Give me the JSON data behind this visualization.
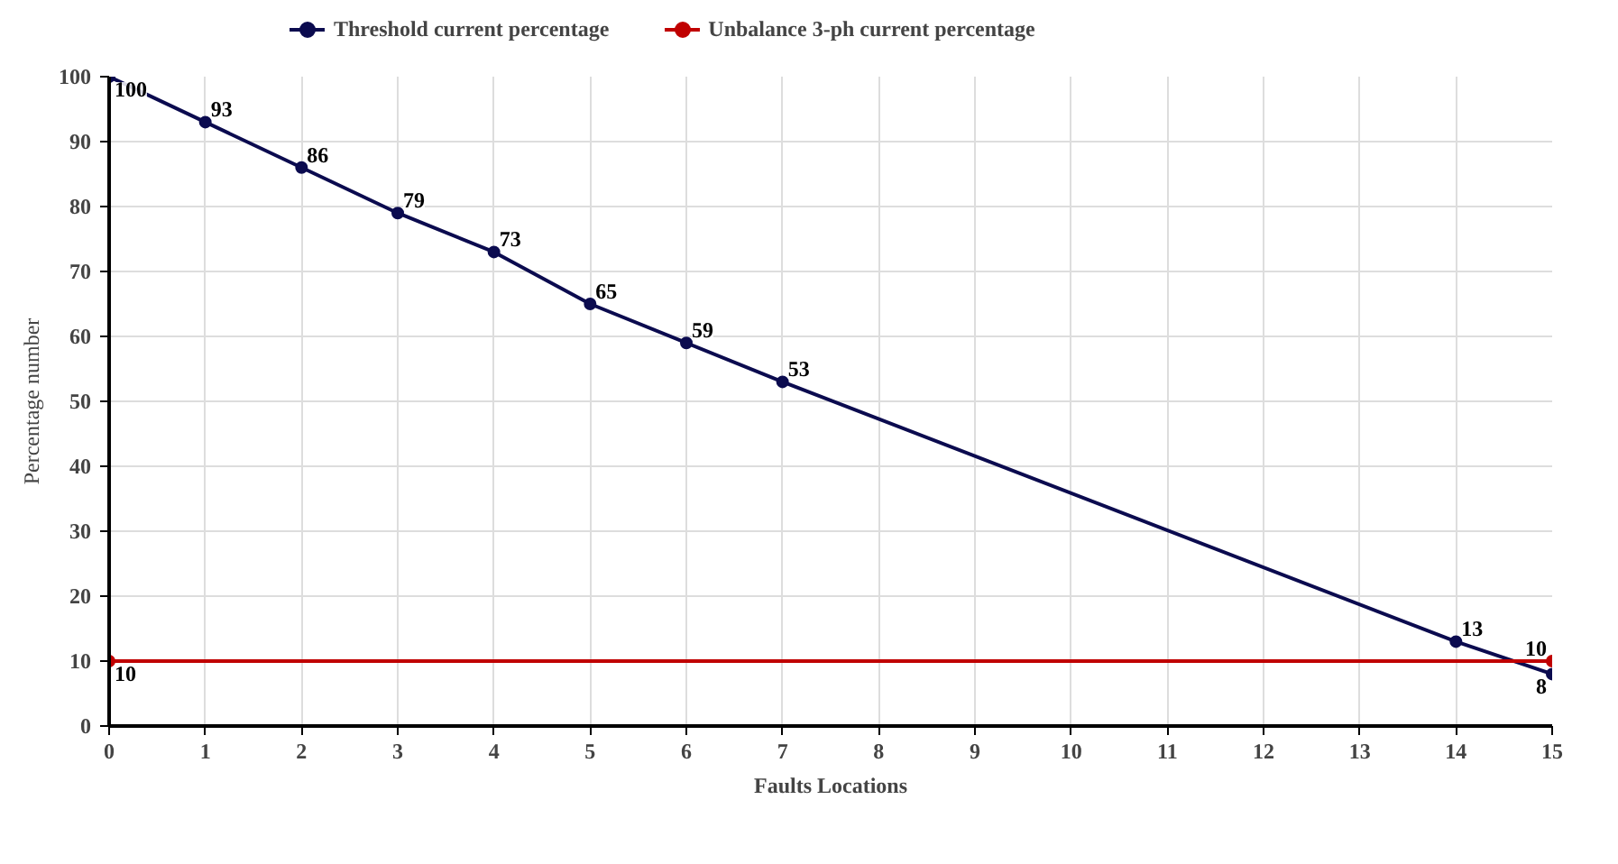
{
  "chart_data": {
    "type": "line",
    "xlabel": "Faults Locations",
    "ylabel": "Percentage number",
    "xlim": [
      0,
      15
    ],
    "ylim": [
      0,
      100
    ],
    "xticks": [
      0,
      1,
      2,
      3,
      4,
      5,
      6,
      7,
      8,
      9,
      10,
      11,
      12,
      13,
      14,
      15
    ],
    "yticks": [
      0,
      10,
      20,
      30,
      40,
      50,
      60,
      70,
      80,
      90,
      100
    ],
    "grid": true,
    "legend": "top left",
    "marker": "circle",
    "line_style": "solid",
    "data_labels": true,
    "series": [
      {
        "name": "Threshold current percentage",
        "color": "#0b0b4f",
        "x": [
          0,
          1,
          2,
          3,
          4,
          5,
          6,
          7,
          14,
          15
        ],
        "values": [
          100,
          93,
          86,
          79,
          73,
          65,
          59,
          53,
          13,
          8
        ]
      },
      {
        "name": "Unbalance 3-ph current percentage",
        "color": "#c00000",
        "x": [
          0,
          15
        ],
        "values": [
          10,
          10
        ]
      }
    ]
  }
}
